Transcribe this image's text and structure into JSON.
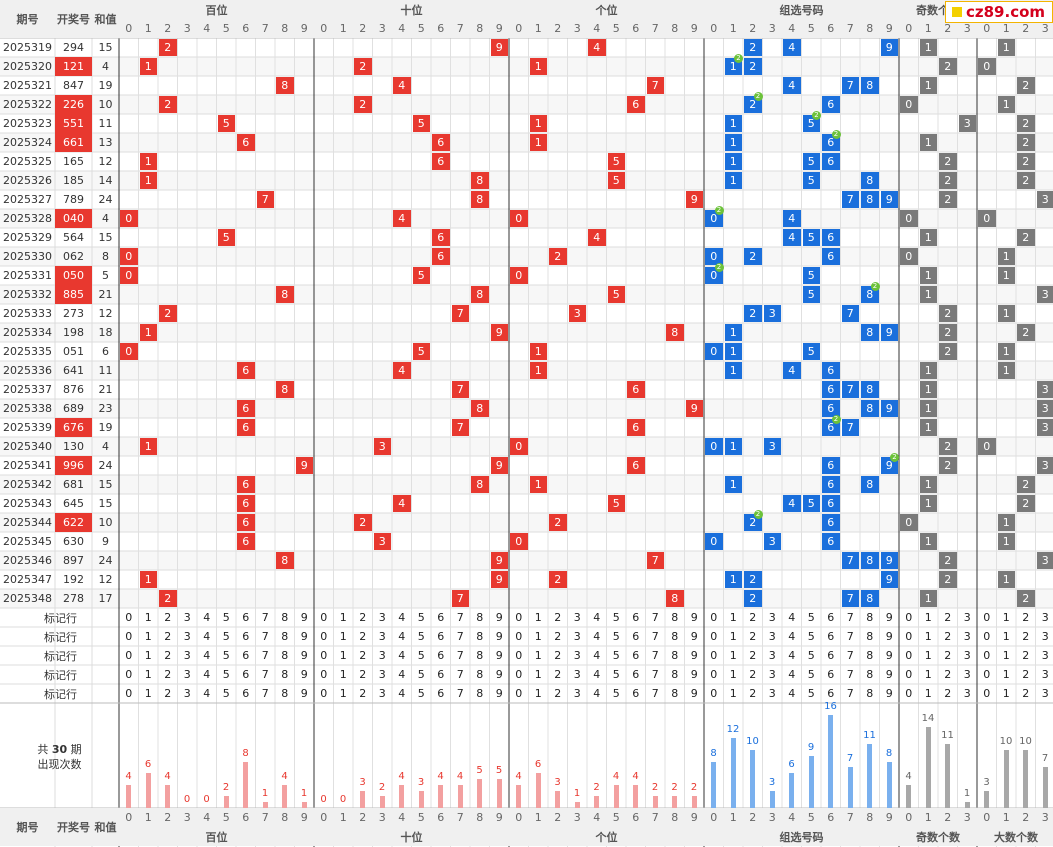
{
  "brand": {
    "logo_text": "cz89.com"
  },
  "headers": {
    "period": "期号",
    "draw": "开奖号",
    "sum": "和值",
    "hundreds": "百位",
    "tens": "十位",
    "units": "个位",
    "group": "组选号码",
    "odd_count": "奇数个数",
    "big_count": "大数个数"
  },
  "marker_row_label": "标记行",
  "stats_label_line1": "共",
  "stats_label_count": "30",
  "stats_label_line2": "期",
  "stats_label_line3": "出现次数",
  "colors": {
    "red": "#e8382f",
    "blue": "#1a6fdc",
    "gray": "#7a7a7a",
    "badge": "#6cc23a",
    "bar_red": "#f3a0a0",
    "bar_blue": "#7ab0ee",
    "bar_gray": "#a8a8a8"
  },
  "chart_data": {
    "type": "table",
    "rows": [
      {
        "period": "2025319",
        "draw": "294",
        "sum": "15"
      },
      {
        "period": "2025320",
        "draw": "121",
        "sum": "4"
      },
      {
        "period": "2025321",
        "draw": "847",
        "sum": "19"
      },
      {
        "period": "2025322",
        "draw": "226",
        "sum": "10"
      },
      {
        "period": "2025323",
        "draw": "551",
        "sum": "11"
      },
      {
        "period": "2025324",
        "draw": "661",
        "sum": "13"
      },
      {
        "period": "2025325",
        "draw": "165",
        "sum": "12"
      },
      {
        "period": "2025326",
        "draw": "185",
        "sum": "14"
      },
      {
        "period": "2025327",
        "draw": "789",
        "sum": "24"
      },
      {
        "period": "2025328",
        "draw": "040",
        "sum": "4"
      },
      {
        "period": "2025329",
        "draw": "564",
        "sum": "15"
      },
      {
        "period": "2025330",
        "draw": "062",
        "sum": "8"
      },
      {
        "period": "2025331",
        "draw": "050",
        "sum": "5"
      },
      {
        "period": "2025332",
        "draw": "885",
        "sum": "21"
      },
      {
        "period": "2025333",
        "draw": "273",
        "sum": "12"
      },
      {
        "period": "2025334",
        "draw": "198",
        "sum": "18"
      },
      {
        "period": "2025335",
        "draw": "051",
        "sum": "6"
      },
      {
        "period": "2025336",
        "draw": "641",
        "sum": "11"
      },
      {
        "period": "2025337",
        "draw": "876",
        "sum": "21"
      },
      {
        "period": "2025338",
        "draw": "689",
        "sum": "23"
      },
      {
        "period": "2025339",
        "draw": "676",
        "sum": "19"
      },
      {
        "period": "2025340",
        "draw": "130",
        "sum": "4"
      },
      {
        "period": "2025341",
        "draw": "996",
        "sum": "24"
      },
      {
        "period": "2025342",
        "draw": "681",
        "sum": "15"
      },
      {
        "period": "2025343",
        "draw": "645",
        "sum": "15"
      },
      {
        "period": "2025344",
        "draw": "622",
        "sum": "10"
      },
      {
        "period": "2025345",
        "draw": "630",
        "sum": "9"
      },
      {
        "period": "2025346",
        "draw": "897",
        "sum": "24"
      },
      {
        "period": "2025347",
        "draw": "192",
        "sum": "12"
      },
      {
        "period": "2025348",
        "draw": "278",
        "sum": "17"
      }
    ],
    "highlighted_draws": [
      "2025320",
      "2025322",
      "2025323",
      "2025324",
      "2025328",
      "2025331",
      "2025332",
      "2025339",
      "2025341",
      "2025344"
    ],
    "counts": {
      "hundreds": [
        4,
        6,
        4,
        0,
        0,
        2,
        8,
        1,
        4,
        1
      ],
      "tens": [
        0,
        0,
        3,
        2,
        4,
        3,
        4,
        4,
        5,
        5
      ],
      "units": [
        4,
        6,
        3,
        1,
        2,
        4,
        4,
        2,
        2,
        2
      ],
      "group": [
        8,
        12,
        10,
        3,
        6,
        9,
        16,
        7,
        11,
        8
      ],
      "odd_count": [
        4,
        14,
        11,
        1
      ],
      "big_count": [
        3,
        10,
        10,
        7
      ]
    }
  }
}
